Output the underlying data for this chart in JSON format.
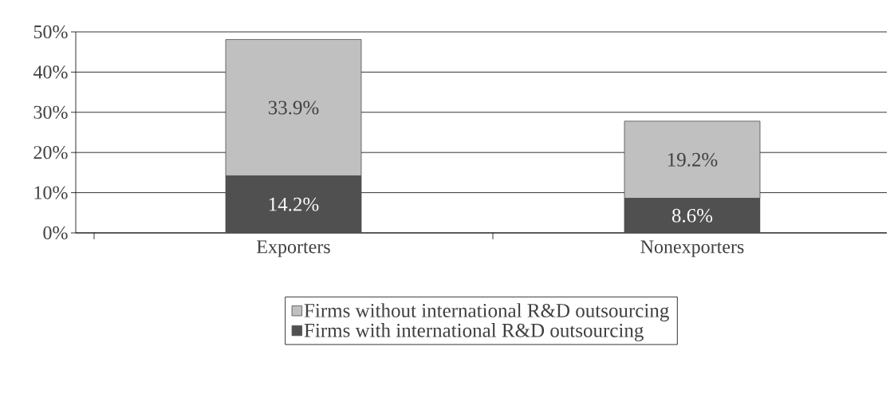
{
  "chart_data": {
    "type": "bar",
    "stacked": true,
    "categories": [
      "Exporters",
      "Nonexporters"
    ],
    "series": [
      {
        "name": "Firms with international R&D outsourcing",
        "color": "#505050",
        "values": [
          14.2,
          8.6
        ],
        "value_labels": [
          "14.2%",
          "8.6%"
        ]
      },
      {
        "name": "Firms without international R&D outsourcing",
        "color": "#c0c0c0",
        "values": [
          33.9,
          19.2
        ],
        "value_labels": [
          "33.9%",
          "19.2%"
        ]
      }
    ],
    "ylim": [
      0,
      50
    ],
    "yticks": [
      {
        "value": 0,
        "label": "0%"
      },
      {
        "value": 10,
        "label": "10%"
      },
      {
        "value": 20,
        "label": "20%"
      },
      {
        "value": 30,
        "label": "30%"
      },
      {
        "value": 40,
        "label": "40%"
      },
      {
        "value": 50,
        "label": "50%"
      }
    ],
    "grid": "y",
    "legend": "bottom"
  }
}
